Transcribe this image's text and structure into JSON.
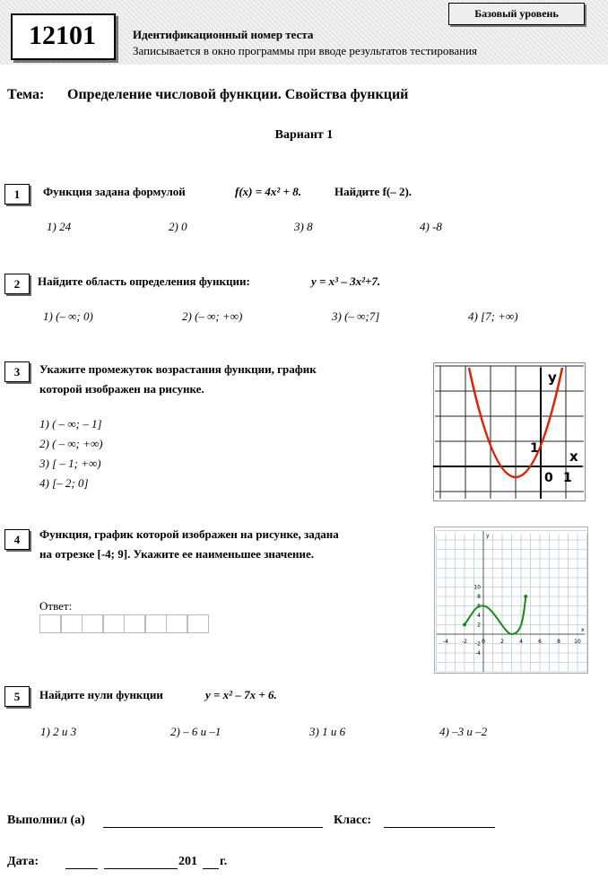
{
  "header": {
    "test_number": "12101",
    "id_title": "Идентификационный номер теста",
    "id_note": "Записывается в окно программы при вводе результатов тестирования",
    "level": "Базовый уровень"
  },
  "topic": {
    "label": "Тема:",
    "text": "Определение числовой функции.  Свойства функций"
  },
  "variant": "Вариант  1",
  "questions": [
    {
      "number": "1",
      "text": "Функция задана формулой",
      "formula": "f(x) = 4x² + 8.",
      "ask": "Найдите  f(– 2).",
      "options": [
        "1) 24",
        "2) 0",
        "3) 8",
        "4) -8"
      ]
    },
    {
      "number": "2",
      "text": "Найдите область определения функции:",
      "formula": "y = x³ – 3x²+7.",
      "options": [
        "1) (– ∞; 0)",
        "2)  (– ∞; +∞)",
        "3)  (– ∞;7]",
        "4)  [7; +∞)"
      ]
    },
    {
      "number": "3",
      "lines": [
        "Укажите промежуток возрастания функции, график",
        "которой изображен на рисунке."
      ],
      "options": [
        "1)  ( – ∞; – 1]",
        "2)  ( – ∞; +∞)",
        "3)  [ – 1; +∞)",
        "4)  [– 2; 0]"
      ],
      "graph_labels": {
        "y": "y",
        "x": "x",
        "one_y": "1",
        "zero": "0",
        "one_x": "1"
      }
    },
    {
      "number": "4",
      "lines": [
        "Функция, график которой изображен на рисунке, задана",
        "на отрезке [-4; 9]. Укажите ее наименьшее значение."
      ],
      "answer_label": "Ответ:",
      "graph_xticks": [
        "-4",
        "-2",
        "0",
        "2",
        "4",
        "6",
        "8",
        "10"
      ],
      "graph_yticks": [
        "10",
        "8",
        "6",
        "4",
        "2",
        "-2",
        "-4"
      ],
      "graph_x": "x",
      "graph_y": "y"
    },
    {
      "number": "5",
      "text": "Найдите нули функции",
      "formula": "y = x² – 7x + 6.",
      "options": [
        "1) 2  и 3",
        "2) – 6  и –1",
        "3) 1 и 6",
        "4) –3  и –2"
      ]
    }
  ],
  "footer": {
    "done_by": "Выполнил (а)",
    "class": "Класс:",
    "date": "Дата:",
    "year": "201",
    "year_suffix": "г."
  }
}
